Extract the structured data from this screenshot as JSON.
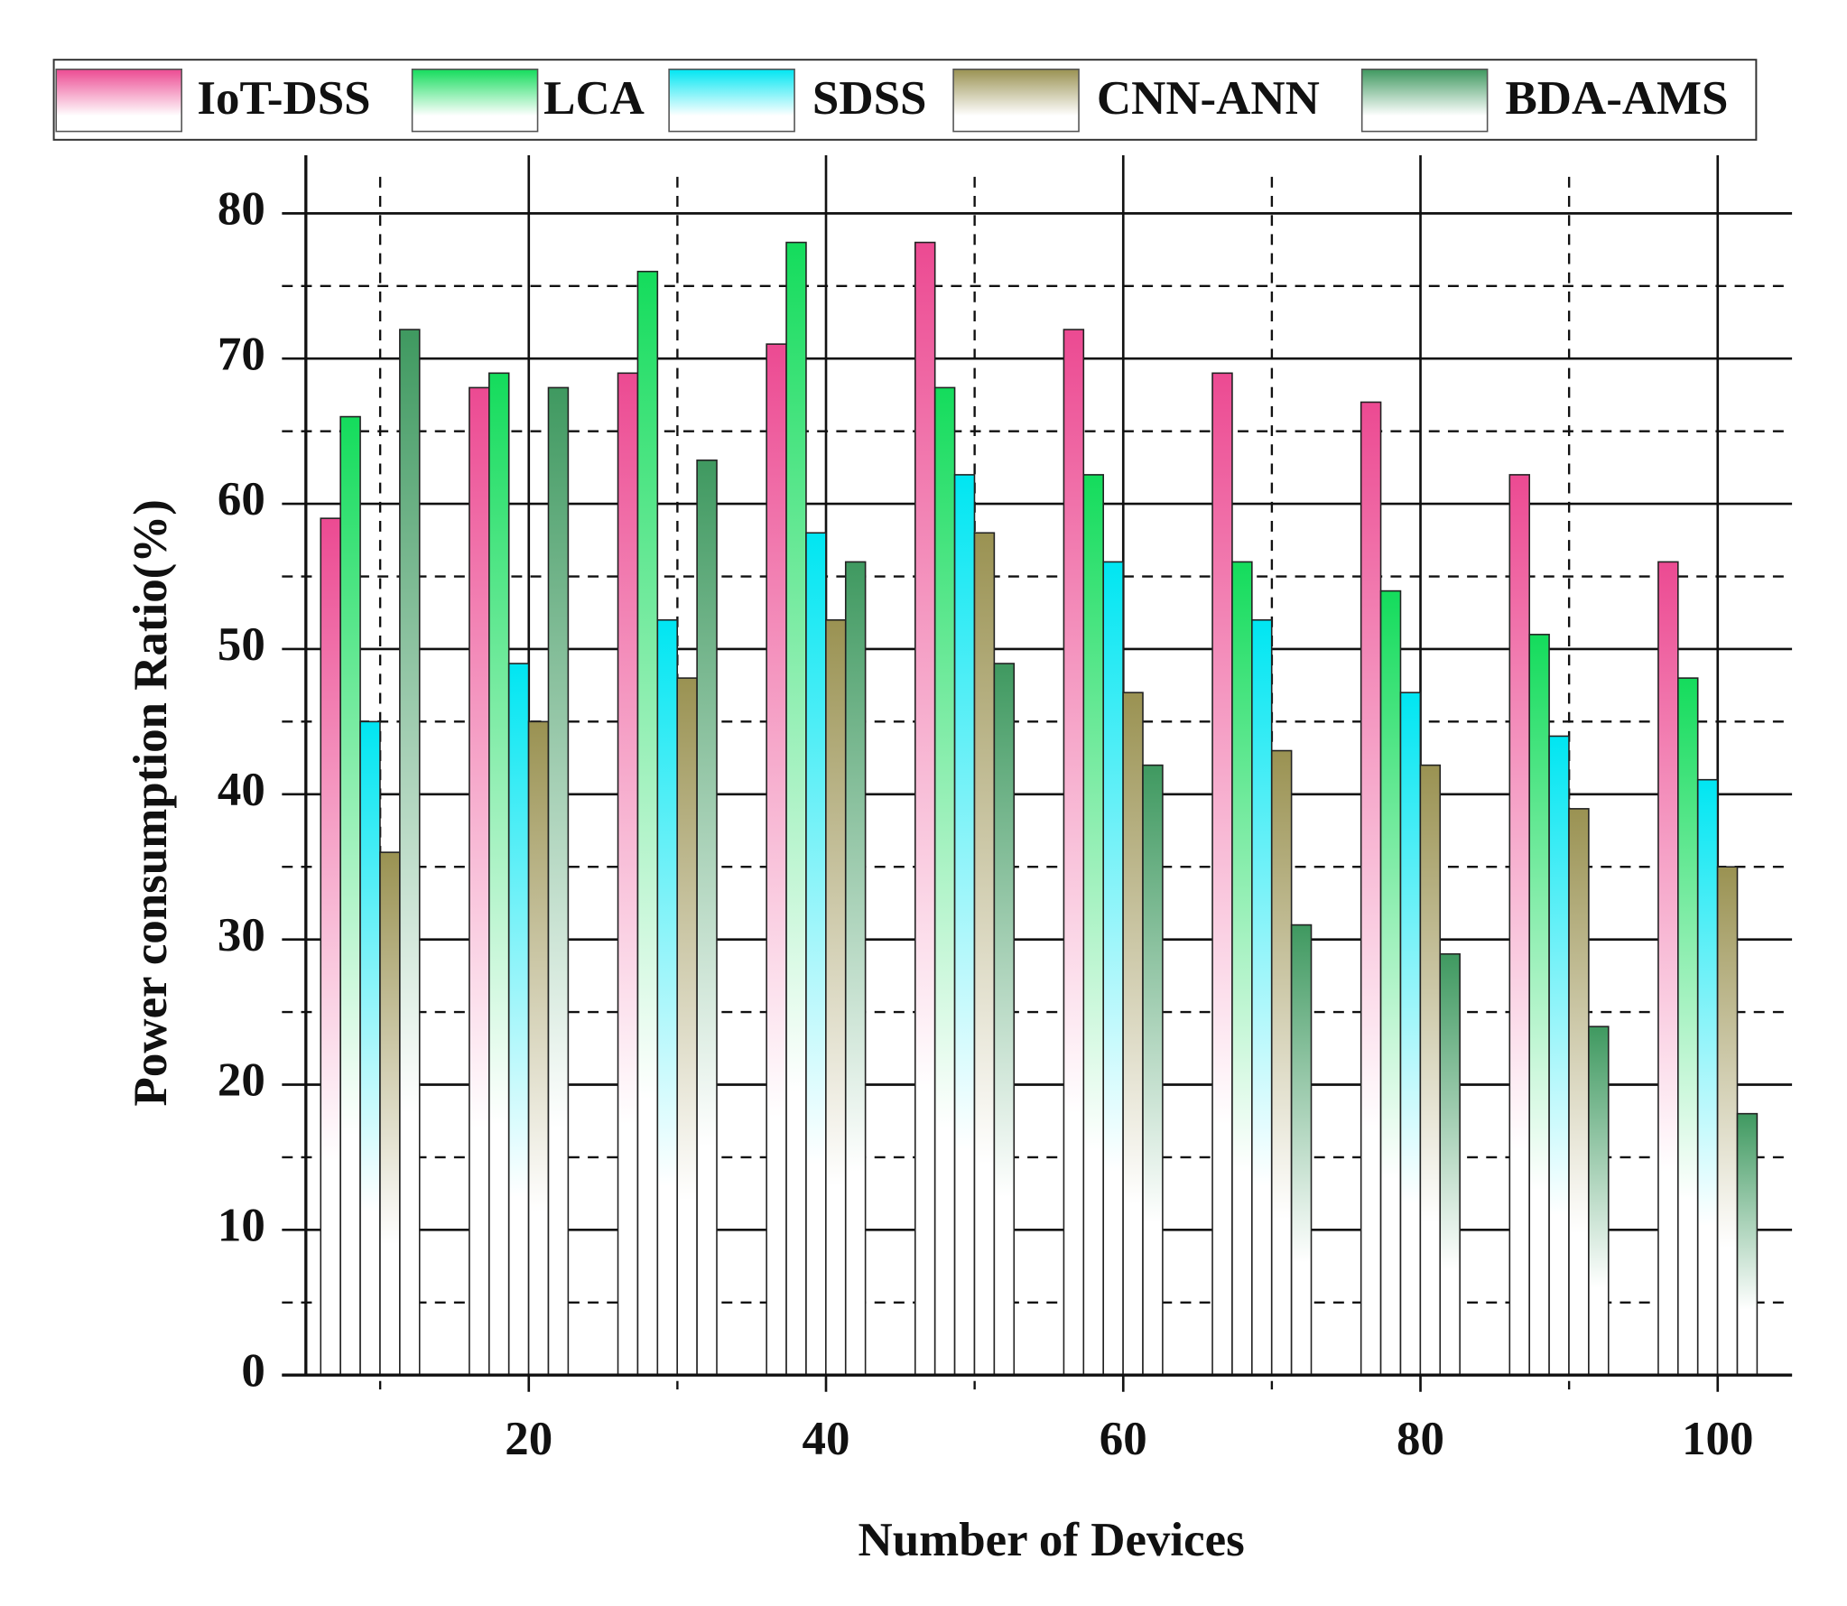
{
  "chart_data": {
    "type": "bar",
    "xlabel": "Number  of Devices",
    "ylabel": "Power consumption Ratio(%)",
    "x": [
      10,
      20,
      30,
      40,
      50,
      60,
      70,
      80,
      90,
      100
    ],
    "series": [
      {
        "name": "IoT-DSS",
        "color": "#ec4a92",
        "values": [
          59,
          68,
          69,
          71,
          78,
          72,
          69,
          67,
          62,
          56
        ]
      },
      {
        "name": "LCA",
        "color": "#14dc5c",
        "values": [
          66,
          69,
          76,
          78,
          68,
          62,
          56,
          54,
          51,
          48
        ]
      },
      {
        "name": "SDSS",
        "color": "#00e6f2",
        "values": [
          45,
          49,
          52,
          58,
          62,
          56,
          52,
          47,
          44,
          41
        ]
      },
      {
        "name": "CNN-ANN",
        "color": "#9a9252",
        "values": [
          36,
          45,
          48,
          52,
          58,
          47,
          43,
          42,
          39,
          35
        ]
      },
      {
        "name": "BDA-AMS",
        "color": "#3f9960",
        "values": [
          72,
          68,
          63,
          56,
          49,
          42,
          31,
          29,
          24,
          18
        ]
      }
    ],
    "xlim": [
      5,
      105
    ],
    "xticks": [
      20,
      40,
      60,
      80,
      100
    ],
    "xminorticks": [
      10,
      30,
      50,
      70,
      90
    ],
    "ylim": [
      0,
      84
    ],
    "yticks": [
      0,
      10,
      20,
      30,
      40,
      50,
      60,
      70,
      80
    ],
    "yminorticks": [
      5,
      15,
      25,
      35,
      45,
      55,
      65,
      75
    ],
    "grid": true
  }
}
